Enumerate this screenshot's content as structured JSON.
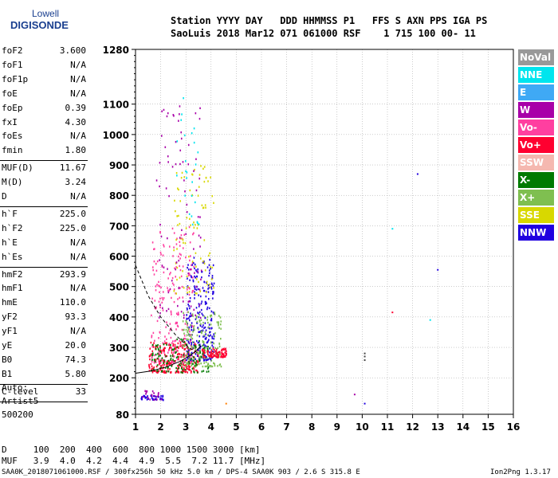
{
  "logo": {
    "line1": "Lowell",
    "line2": "DIGISONDE"
  },
  "header": {
    "row1": "Station YYYY DAY   DDD HHMMSS P1   FFS S AXN PPS IGA PS",
    "row2": "SaoLuis 2018 Mar12 071 061000 RSF    1 715 100 00- 11"
  },
  "params_groups": [
    [
      {
        "name": "foF2",
        "value": "3.600"
      },
      {
        "name": "foF1",
        "value": "N/A"
      },
      {
        "name": "foF1p",
        "value": "N/A"
      },
      {
        "name": "foE",
        "value": "N/A"
      },
      {
        "name": "foEp",
        "value": "0.39"
      },
      {
        "name": "fxI",
        "value": "4.30"
      },
      {
        "name": "foEs",
        "value": "N/A"
      },
      {
        "name": "fmin",
        "value": "1.80"
      }
    ],
    [
      {
        "name": "MUF(D)",
        "value": "11.67"
      },
      {
        "name": "M(D)",
        "value": "3.24"
      },
      {
        "name": "D",
        "value": "N/A"
      }
    ],
    [
      {
        "name": "h`F",
        "value": "225.0"
      },
      {
        "name": "h`F2",
        "value": "225.0"
      },
      {
        "name": "h`E",
        "value": "N/A"
      },
      {
        "name": "h`Es",
        "value": "N/A"
      }
    ],
    [
      {
        "name": "hmF2",
        "value": "293.9"
      },
      {
        "name": "hmF1",
        "value": "N/A"
      },
      {
        "name": "hmE",
        "value": "110.0"
      },
      {
        "name": "yF2",
        "value": "93.3"
      },
      {
        "name": "yF1",
        "value": "N/A"
      },
      {
        "name": "yE",
        "value": "20.0"
      },
      {
        "name": "B0",
        "value": "74.3"
      },
      {
        "name": "B1",
        "value": "5.80"
      }
    ],
    [
      {
        "name": "C-level",
        "value": "33"
      }
    ]
  ],
  "auto": {
    "line1": "Auto:",
    "line2": "Artist5",
    "line3": "500200"
  },
  "legend": [
    {
      "label": "NoVal",
      "color": "#999999"
    },
    {
      "label": "NNE",
      "color": "#00e5ee"
    },
    {
      "label": "E",
      "color": "#3fa9f5"
    },
    {
      "label": "W",
      "color": "#a800a8"
    },
    {
      "label": "Vo-",
      "color": "#ff3fa0"
    },
    {
      "label": "Vo+",
      "color": "#ff0030"
    },
    {
      "label": "SSW",
      "color": "#f5b8b0"
    },
    {
      "label": "X-",
      "color": "#007a00"
    },
    {
      "label": "X+",
      "color": "#7fbf50"
    },
    {
      "label": "SSE",
      "color": "#d8d800"
    },
    {
      "label": "NNW",
      "color": "#2000e0"
    }
  ],
  "muf_table": {
    "d_row": "D     100  200  400  600  800 1000 1500 3000 [km]",
    "muf_row": "MUF   3.9  4.0  4.2  4.4  4.9  5.5  7.2 11.7 [MHz]"
  },
  "footer": {
    "left": "SAA0K_2018071061000.RSF / 300fx256h 50 kHz 5.0 km / DPS-4 SAA0K 903 / 2.6 S 315.8 E",
    "right": "Ion2Png 1.3.17"
  },
  "chart_data": {
    "type": "scatter",
    "xlim": [
      1,
      16
    ],
    "ylim": [
      80,
      1280
    ],
    "x_ticks": [
      1,
      2,
      3,
      4,
      5,
      6,
      7,
      8,
      9,
      10,
      11,
      12,
      13,
      14,
      15,
      16
    ],
    "y_ticks": [
      80,
      200,
      300,
      400,
      500,
      600,
      700,
      800,
      900,
      1000,
      1100,
      1280
    ],
    "grid": true,
    "clusters": [
      {
        "color": "#ff0030",
        "x": [
          1.5,
          3.5
        ],
        "y": [
          220,
          320
        ],
        "n": 260
      },
      {
        "color": "#ff3fa0",
        "x": [
          1.6,
          3.3
        ],
        "y": [
          250,
          700
        ],
        "n": 220
      },
      {
        "color": "#2000e0",
        "x": [
          3.0,
          4.1
        ],
        "y": [
          260,
          600
        ],
        "n": 260
      },
      {
        "color": "#7fbf50",
        "x": [
          2.8,
          4.4
        ],
        "y": [
          240,
          420
        ],
        "n": 180
      },
      {
        "color": "#007a00",
        "x": [
          1.6,
          3.9
        ],
        "y": [
          220,
          330
        ],
        "n": 120
      },
      {
        "color": "#d8d800",
        "x": [
          2.5,
          4.1
        ],
        "y": [
          480,
          900
        ],
        "n": 90
      },
      {
        "color": "#a800a8",
        "x": [
          1.8,
          3.6
        ],
        "y": [
          400,
          1100
        ],
        "n": 90
      },
      {
        "color": "#ff0030",
        "x": [
          3.6,
          4.6
        ],
        "y": [
          270,
          300
        ],
        "n": 90
      },
      {
        "color": "#00e5ee",
        "x": [
          2.6,
          3.5
        ],
        "y": [
          700,
          1150
        ],
        "n": 25
      },
      {
        "color": "#2000e0",
        "x": [
          1.2,
          2.1
        ],
        "y": [
          130,
          145
        ],
        "n": 40
      },
      {
        "color": "#a800a8",
        "x": [
          1.2,
          2.0
        ],
        "y": [
          130,
          160
        ],
        "n": 20
      }
    ],
    "isolated_points": [
      {
        "x": 12.2,
        "y": 870,
        "color": "#2000e0"
      },
      {
        "x": 11.2,
        "y": 690,
        "color": "#00e5ee"
      },
      {
        "x": 13.0,
        "y": 555,
        "color": "#2000e0"
      },
      {
        "x": 11.2,
        "y": 415,
        "color": "#ff0030"
      },
      {
        "x": 12.7,
        "y": 390,
        "color": "#00e5ee"
      },
      {
        "x": 10.1,
        "y": 270,
        "color": "#444444"
      },
      {
        "x": 10.1,
        "y": 280,
        "color": "#444444"
      },
      {
        "x": 10.1,
        "y": 258,
        "color": "#444444"
      },
      {
        "x": 9.7,
        "y": 145,
        "color": "#a800a8"
      },
      {
        "x": 10.1,
        "y": 115,
        "color": "#2000e0"
      },
      {
        "x": 4.6,
        "y": 115,
        "color": "#ff7f00"
      }
    ],
    "profile_curve": {
      "x": [
        1.0,
        1.6,
        2.2,
        2.8,
        3.2,
        3.45,
        3.6
      ],
      "y": [
        215,
        222,
        235,
        255,
        275,
        292,
        305
      ]
    },
    "dashed_curve": {
      "x": [
        1.0,
        1.5,
        2.0,
        2.6,
        3.1,
        3.5
      ],
      "y": [
        570,
        470,
        400,
        340,
        300,
        280
      ]
    }
  }
}
